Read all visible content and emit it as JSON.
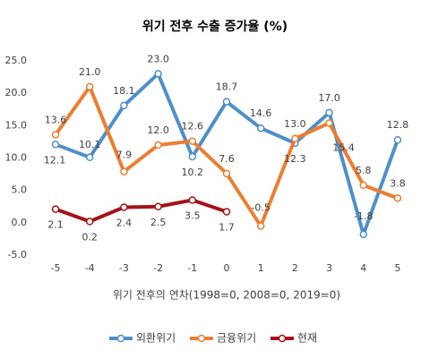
{
  "chart_data": {
    "type": "line",
    "title": "위기 전후 수출 증가율 (%)",
    "x_label": "위기 전후의 연차(1998=0, 2008=0, 2019=0)",
    "categories": [
      "-5",
      "-4",
      "-3",
      "-2",
      "-1",
      "0",
      "1",
      "2",
      "3",
      "4",
      "5"
    ],
    "ylim": [
      -5,
      25
    ],
    "yticks": [
      {
        "value": -5,
        "label": "-5.0"
      },
      {
        "value": 0,
        "label": "0.0"
      },
      {
        "value": 5,
        "label": "5.0"
      },
      {
        "value": 10,
        "label": "10.0"
      },
      {
        "value": 15,
        "label": "15.0"
      },
      {
        "value": 20,
        "label": "20.0"
      },
      {
        "value": 25,
        "label": "25.0"
      }
    ],
    "legend": "bottom",
    "series": [
      {
        "name": "외환위기",
        "color": "#4e8fc9",
        "values": [
          12.1,
          10.1,
          18.1,
          23,
          10.2,
          18.7,
          14.6,
          12.3,
          17,
          -1.8,
          12.8
        ],
        "value_labels": [
          "12.1",
          "10.1",
          "18.1",
          "23.0",
          "10.2",
          "18.7",
          "14.6",
          "12.3",
          "17.0",
          "-1.8",
          "12.8"
        ]
      },
      {
        "name": "금융위기",
        "color": "#ed7d31",
        "values": [
          13.6,
          21,
          7.9,
          12,
          12.6,
          7.6,
          -0.5,
          13,
          15.4,
          5.8,
          3.8
        ],
        "value_labels": [
          "13.6",
          "21.0",
          "7.9",
          "12.0",
          "12.6",
          "7.6",
          "-0.5",
          "13.0",
          "15.4",
          "5.8",
          "3.8"
        ]
      },
      {
        "name": "현재",
        "color": "#a5121a",
        "values": [
          2.1,
          0.2,
          2.4,
          2.5,
          3.5,
          1.7,
          null,
          null,
          null,
          null,
          null
        ],
        "value_labels": [
          "2.1",
          "0.2",
          "2.4",
          "2.5",
          "3.5",
          "1.7",
          null,
          null,
          null,
          null,
          null
        ]
      }
    ]
  }
}
